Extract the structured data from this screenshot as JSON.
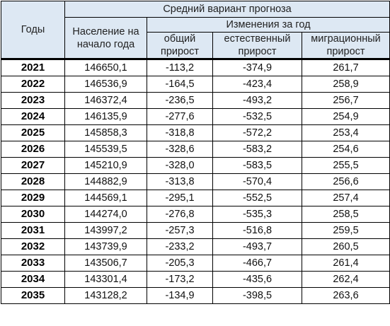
{
  "header": {
    "years": "Годы",
    "forecast": "Средний вариант прогноза",
    "population": [
      "Население на",
      "начало года"
    ],
    "changes": "Изменения за год",
    "total": [
      "общий",
      "прирост"
    ],
    "natural": [
      "естественный",
      "прирост"
    ],
    "migration": [
      "миграционный",
      "прирост"
    ]
  },
  "rows": [
    {
      "year": "2021",
      "population": "146650,1",
      "total": "-113,2",
      "natural": "-374,9",
      "migration": "261,7"
    },
    {
      "year": "2022",
      "population": "146536,9",
      "total": "-164,5",
      "natural": "-423,4",
      "migration": "258,9"
    },
    {
      "year": "2023",
      "population": "146372,4",
      "total": "-236,5",
      "natural": "-493,2",
      "migration": "256,7"
    },
    {
      "year": "2024",
      "population": "146135,9",
      "total": "-277,6",
      "natural": "-532,5",
      "migration": "254,9"
    },
    {
      "year": "2025",
      "population": "145858,3",
      "total": "-318,8",
      "natural": "-572,2",
      "migration": "253,4"
    },
    {
      "year": "2026",
      "population": "145539,5",
      "total": "-328,6",
      "natural": "-583,2",
      "migration": "254,6"
    },
    {
      "year": "2027",
      "population": "145210,9",
      "total": "-328,0",
      "natural": "-583,5",
      "migration": "255,5"
    },
    {
      "year": "2028",
      "population": "144882,9",
      "total": "-313,8",
      "natural": "-570,4",
      "migration": "256,6"
    },
    {
      "year": "2029",
      "population": "144569,1",
      "total": "-295,1",
      "natural": "-552,5",
      "migration": "257,4"
    },
    {
      "year": "2030",
      "population": "144274,0",
      "total": "-276,8",
      "natural": "-535,3",
      "migration": "258,5"
    },
    {
      "year": "2031",
      "population": "143997,2",
      "total": "-257,3",
      "natural": "-516,8",
      "migration": "259,5"
    },
    {
      "year": "2032",
      "population": "143739,9",
      "total": "-233,2",
      "natural": "-493,7",
      "migration": "260,5"
    },
    {
      "year": "2033",
      "population": "143506,7",
      "total": "-205,3",
      "natural": "-466,7",
      "migration": "261,4"
    },
    {
      "year": "2034",
      "population": "143301,4",
      "total": "-173,2",
      "natural": "-435,6",
      "migration": "262,4"
    },
    {
      "year": "2035",
      "population": "143128,2",
      "total": "-134,9",
      "natural": "-398,5",
      "migration": "263,6"
    }
  ]
}
